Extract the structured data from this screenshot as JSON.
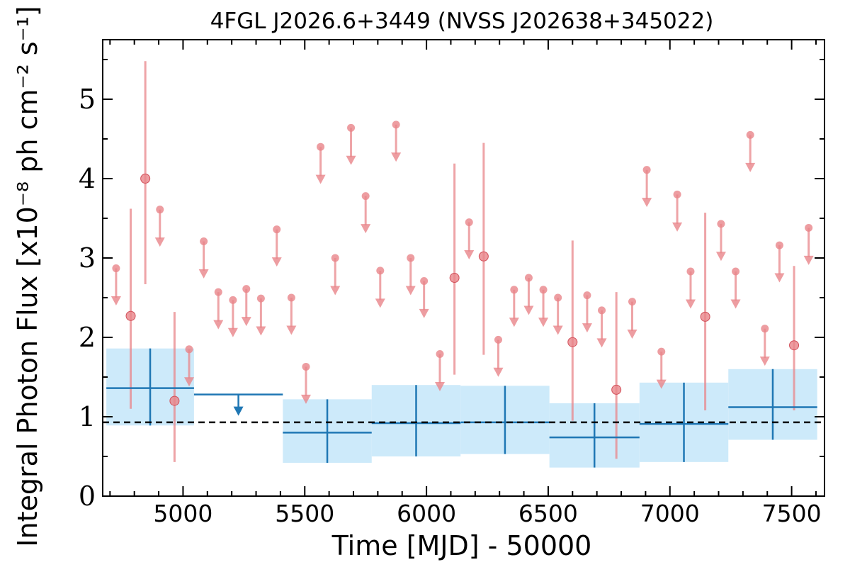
{
  "chart_data": {
    "type": "scatter",
    "title": "4FGL J2026.6+3449 (NVSS J202638+345022)",
    "xlabel": "Time [MJD] - 50000",
    "ylabel": "Integral Photon Flux [x10⁻⁸ ph cm⁻² s⁻¹]",
    "xlim": [
      4670,
      7635
    ],
    "ylim": [
      0,
      5.75
    ],
    "xticks": [
      5000,
      5500,
      6000,
      6500,
      7000,
      7500
    ],
    "xtick_labels": [
      "5000",
      "5500",
      "6000",
      "6500",
      "7000",
      "7500"
    ],
    "yticks": [
      0,
      1,
      2,
      3,
      4,
      5
    ],
    "ytick_labels": [
      "0",
      "1",
      "2",
      "3",
      "4",
      "5"
    ],
    "reference_line": {
      "y": 0.93,
      "style": "dashed",
      "color": "#000000"
    },
    "colors": {
      "fine_bins": "#e8858a",
      "coarse_bins": "#1f77b4",
      "coarse_band": "#cdeafa"
    },
    "series": [
      {
        "resolution": "fine",
        "detections": [
          {
            "x": 4785,
            "y": 2.27,
            "ylo": 1.1,
            "yhi": 3.62
          },
          {
            "x": 4845,
            "y": 4.0,
            "ylo": 2.67,
            "yhi": 5.48
          },
          {
            "x": 4965,
            "y": 1.2,
            "ylo": 0.43,
            "yhi": 2.32
          },
          {
            "x": 6115,
            "y": 2.75,
            "ylo": 1.53,
            "yhi": 4.19
          },
          {
            "x": 6235,
            "y": 3.02,
            "ylo": 1.78,
            "yhi": 4.45
          },
          {
            "x": 6600,
            "y": 1.94,
            "ylo": 0.95,
            "yhi": 3.22
          },
          {
            "x": 6780,
            "y": 1.34,
            "ylo": 0.47,
            "yhi": 2.57
          },
          {
            "x": 7145,
            "y": 2.26,
            "ylo": 1.08,
            "yhi": 3.57
          },
          {
            "x": 7510,
            "y": 1.9,
            "ylo": 1.08,
            "yhi": 2.9
          }
        ],
        "upper_limits": [
          {
            "x": 4725,
            "y": 2.87
          },
          {
            "x": 4905,
            "y": 3.61
          },
          {
            "x": 5025,
            "y": 1.85
          },
          {
            "x": 5085,
            "y": 3.21
          },
          {
            "x": 5145,
            "y": 2.57
          },
          {
            "x": 5205,
            "y": 2.47
          },
          {
            "x": 5260,
            "y": 2.61
          },
          {
            "x": 5320,
            "y": 2.49
          },
          {
            "x": 5385,
            "y": 3.36
          },
          {
            "x": 5445,
            "y": 2.5
          },
          {
            "x": 5505,
            "y": 1.63
          },
          {
            "x": 5565,
            "y": 4.4
          },
          {
            "x": 5625,
            "y": 3.0
          },
          {
            "x": 5690,
            "y": 4.64
          },
          {
            "x": 5750,
            "y": 3.78
          },
          {
            "x": 5810,
            "y": 2.84
          },
          {
            "x": 5875,
            "y": 4.68
          },
          {
            "x": 5935,
            "y": 3.0
          },
          {
            "x": 5990,
            "y": 2.71
          },
          {
            "x": 6055,
            "y": 1.79
          },
          {
            "x": 6175,
            "y": 3.45
          },
          {
            "x": 6295,
            "y": 1.97
          },
          {
            "x": 6360,
            "y": 2.6
          },
          {
            "x": 6420,
            "y": 2.75
          },
          {
            "x": 6480,
            "y": 2.6
          },
          {
            "x": 6540,
            "y": 2.5
          },
          {
            "x": 6660,
            "y": 2.53
          },
          {
            "x": 6720,
            "y": 2.34
          },
          {
            "x": 6845,
            "y": 2.45
          },
          {
            "x": 6905,
            "y": 4.11
          },
          {
            "x": 6965,
            "y": 1.82
          },
          {
            "x": 7030,
            "y": 3.8
          },
          {
            "x": 7085,
            "y": 2.83
          },
          {
            "x": 7210,
            "y": 3.43
          },
          {
            "x": 7270,
            "y": 2.83
          },
          {
            "x": 7330,
            "y": 4.55
          },
          {
            "x": 7390,
            "y": 2.11
          },
          {
            "x": 7450,
            "y": 3.16
          },
          {
            "x": 7570,
            "y": 3.38
          }
        ]
      },
      {
        "resolution": "coarse",
        "bins": [
          {
            "x0": 4685,
            "x1": 5045,
            "y": 1.36,
            "ylo": 0.89,
            "yhi": 1.86
          },
          {
            "x0": 5045,
            "x1": 5410,
            "y": 1.28,
            "upper_limit": true
          },
          {
            "x0": 5410,
            "x1": 5775,
            "y": 0.8,
            "ylo": 0.42,
            "yhi": 1.22
          },
          {
            "x0": 5775,
            "x1": 6140,
            "y": 0.92,
            "ylo": 0.5,
            "yhi": 1.4
          },
          {
            "x0": 6140,
            "x1": 6505,
            "y": 0.93,
            "ylo": 0.53,
            "yhi": 1.39
          },
          {
            "x0": 6505,
            "x1": 6875,
            "y": 0.74,
            "ylo": 0.36,
            "yhi": 1.17
          },
          {
            "x0": 6875,
            "x1": 7240,
            "y": 0.91,
            "ylo": 0.43,
            "yhi": 1.43
          },
          {
            "x0": 7240,
            "x1": 7605,
            "y": 1.12,
            "ylo": 0.71,
            "yhi": 1.6
          }
        ]
      }
    ]
  }
}
